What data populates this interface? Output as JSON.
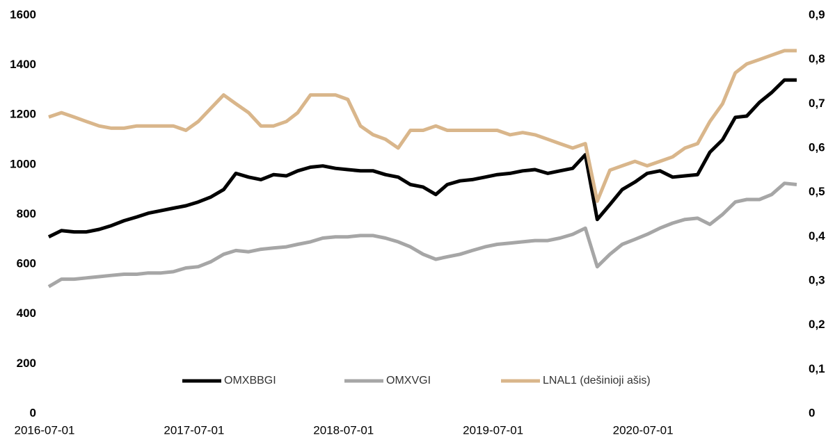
{
  "chart_data": {
    "type": "line",
    "x": [
      "2016-07-01",
      "2016-08-01",
      "2016-09-01",
      "2016-10-01",
      "2016-11-01",
      "2016-12-01",
      "2017-01-01",
      "2017-02-01",
      "2017-03-01",
      "2017-04-01",
      "2017-05-01",
      "2017-06-01",
      "2017-07-01",
      "2017-08-01",
      "2017-09-01",
      "2017-10-01",
      "2017-11-01",
      "2017-12-01",
      "2018-01-01",
      "2018-02-01",
      "2018-03-01",
      "2018-04-01",
      "2018-05-01",
      "2018-06-01",
      "2018-07-01",
      "2018-08-01",
      "2018-09-01",
      "2018-10-01",
      "2018-11-01",
      "2018-12-01",
      "2019-01-01",
      "2019-02-01",
      "2019-03-01",
      "2019-04-01",
      "2019-05-01",
      "2019-06-01",
      "2019-07-01",
      "2019-08-01",
      "2019-09-01",
      "2019-10-01",
      "2019-11-01",
      "2019-12-01",
      "2020-01-01",
      "2020-02-01",
      "2020-03-01",
      "2020-04-01",
      "2020-05-01",
      "2020-06-01",
      "2020-07-01",
      "2020-08-01",
      "2020-09-01",
      "2020-10-01",
      "2020-11-01",
      "2020-12-01",
      "2021-01-01",
      "2021-02-01",
      "2021-03-01",
      "2021-04-01",
      "2021-05-01",
      "2021-06-01",
      "2021-07-01"
    ],
    "series": [
      {
        "name": "OMXBBGI",
        "color": "#000000",
        "values": [
          710,
          735,
          730,
          730,
          740,
          755,
          775,
          790,
          805,
          815,
          825,
          835,
          850,
          870,
          900,
          965,
          950,
          940,
          960,
          955,
          975,
          990,
          995,
          985,
          980,
          975,
          975,
          960,
          950,
          920,
          910,
          880,
          920,
          935,
          940,
          950,
          960,
          965,
          975,
          980,
          965,
          975,
          985,
          1040,
          780,
          840,
          900,
          930,
          965,
          975,
          950,
          955,
          960,
          1050,
          1100,
          1190,
          1195,
          1250,
          1290,
          1340,
          1340
        ]
      },
      {
        "name": "OMXVGI",
        "color": "#a6a6a6",
        "values": [
          510,
          540,
          540,
          545,
          550,
          555,
          560,
          560,
          565,
          565,
          570,
          585,
          590,
          610,
          640,
          655,
          650,
          660,
          665,
          670,
          680,
          690,
          705,
          710,
          710,
          715,
          715,
          705,
          690,
          670,
          640,
          620,
          630,
          640,
          655,
          670,
          680,
          685,
          690,
          695,
          695,
          705,
          720,
          745,
          590,
          640,
          680,
          700,
          720,
          745,
          765,
          780,
          785,
          760,
          800,
          850,
          860,
          860,
          880,
          925,
          920
        ]
      },
      {
        "name": "LNAL1 (dešinioji ašis)",
        "color": "#d9b68b",
        "axis": "y2",
        "values": [
          0.67,
          0.68,
          0.67,
          0.66,
          0.65,
          0.645,
          0.645,
          0.65,
          0.65,
          0.65,
          0.65,
          0.64,
          0.66,
          0.69,
          0.72,
          0.7,
          0.68,
          0.65,
          0.65,
          0.66,
          0.68,
          0.72,
          0.72,
          0.72,
          0.71,
          0.65,
          0.63,
          0.62,
          0.6,
          0.64,
          0.64,
          0.65,
          0.64,
          0.64,
          0.64,
          0.64,
          0.64,
          0.63,
          0.635,
          0.63,
          0.62,
          0.61,
          0.6,
          0.61,
          0.48,
          0.55,
          0.56,
          0.57,
          0.56,
          0.57,
          0.58,
          0.6,
          0.61,
          0.66,
          0.7,
          0.77,
          0.79,
          0.8,
          0.81,
          0.82,
          0.82
        ]
      }
    ],
    "xlim": [
      "2016-07-01",
      "2021-07-01"
    ],
    "xticks": [
      "2016-07-01",
      "2017-07-01",
      "2018-07-01",
      "2019-07-01",
      "2020-07-01"
    ],
    "ylim": [
      0,
      1600
    ],
    "yticks": [
      0,
      200,
      400,
      600,
      800,
      1000,
      1200,
      1400,
      1600
    ],
    "y2lim": [
      0,
      0.9
    ],
    "y2ticks": [
      0,
      {
        "value": 0.1,
        "label": "0,1"
      },
      {
        "value": 0.2,
        "label": "0,2"
      },
      {
        "value": 0.3,
        "label": "0,3"
      },
      {
        "value": 0.4,
        "label": "0,4"
      },
      {
        "value": 0.5,
        "label": "0,5"
      },
      {
        "value": 0.6,
        "label": "0,6"
      },
      {
        "value": 0.7,
        "label": "0,7"
      },
      {
        "value": 0.8,
        "label": "0,8"
      },
      {
        "value": 0.9,
        "label": "0,9"
      }
    ],
    "legend": "bottom"
  }
}
